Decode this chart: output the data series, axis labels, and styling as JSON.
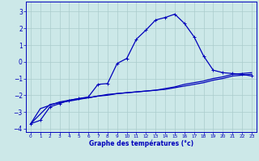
{
  "xlabel": "Graphe des températures (°c)",
  "bg_color": "#cce8e8",
  "grid_color": "#aacccc",
  "line_color": "#0000bb",
  "xlim": [
    -0.5,
    23.5
  ],
  "ylim": [
    -4.2,
    3.6
  ],
  "yticks": [
    -4,
    -3,
    -2,
    -1,
    0,
    1,
    2,
    3
  ],
  "xticks": [
    0,
    1,
    2,
    3,
    4,
    5,
    6,
    7,
    8,
    9,
    10,
    11,
    12,
    13,
    14,
    15,
    16,
    17,
    18,
    19,
    20,
    21,
    22,
    23
  ],
  "curve1_x": [
    0,
    1,
    2,
    3,
    4,
    5,
    6,
    7,
    8,
    9,
    10,
    11,
    12,
    13,
    14,
    15,
    16,
    17,
    18,
    19,
    20,
    21,
    22,
    23
  ],
  "curve1_y": [
    -3.7,
    -3.5,
    -2.7,
    -2.5,
    -2.3,
    -2.2,
    -2.1,
    -1.35,
    -1.3,
    -0.1,
    0.2,
    1.35,
    1.9,
    2.5,
    2.65,
    2.85,
    2.3,
    1.5,
    0.35,
    -0.5,
    -0.65,
    -0.7,
    -0.75,
    -0.85
  ],
  "curve2_x": [
    0,
    1,
    2,
    3,
    4,
    5,
    6,
    7,
    8,
    9,
    10,
    11,
    12,
    13,
    14,
    15,
    16,
    17,
    18,
    19,
    20,
    21,
    22,
    23
  ],
  "curve2_y": [
    -3.7,
    -2.8,
    -2.6,
    -2.4,
    -2.3,
    -2.2,
    -2.15,
    -2.05,
    -2.0,
    -1.9,
    -1.85,
    -1.8,
    -1.75,
    -1.7,
    -1.65,
    -1.55,
    -1.45,
    -1.35,
    -1.25,
    -1.1,
    -1.0,
    -0.85,
    -0.8,
    -0.75
  ],
  "curve3_x": [
    0,
    2,
    3,
    4,
    5,
    6,
    7,
    8,
    9,
    10,
    11,
    12,
    13,
    14,
    15,
    16,
    17,
    18,
    19,
    20,
    21,
    22,
    23
  ],
  "curve3_y": [
    -3.7,
    -2.55,
    -2.45,
    -2.35,
    -2.25,
    -2.15,
    -2.05,
    -1.95,
    -1.9,
    -1.85,
    -1.8,
    -1.75,
    -1.7,
    -1.6,
    -1.5,
    -1.35,
    -1.25,
    -1.15,
    -1.0,
    -0.9,
    -0.75,
    -0.7,
    -0.65
  ]
}
